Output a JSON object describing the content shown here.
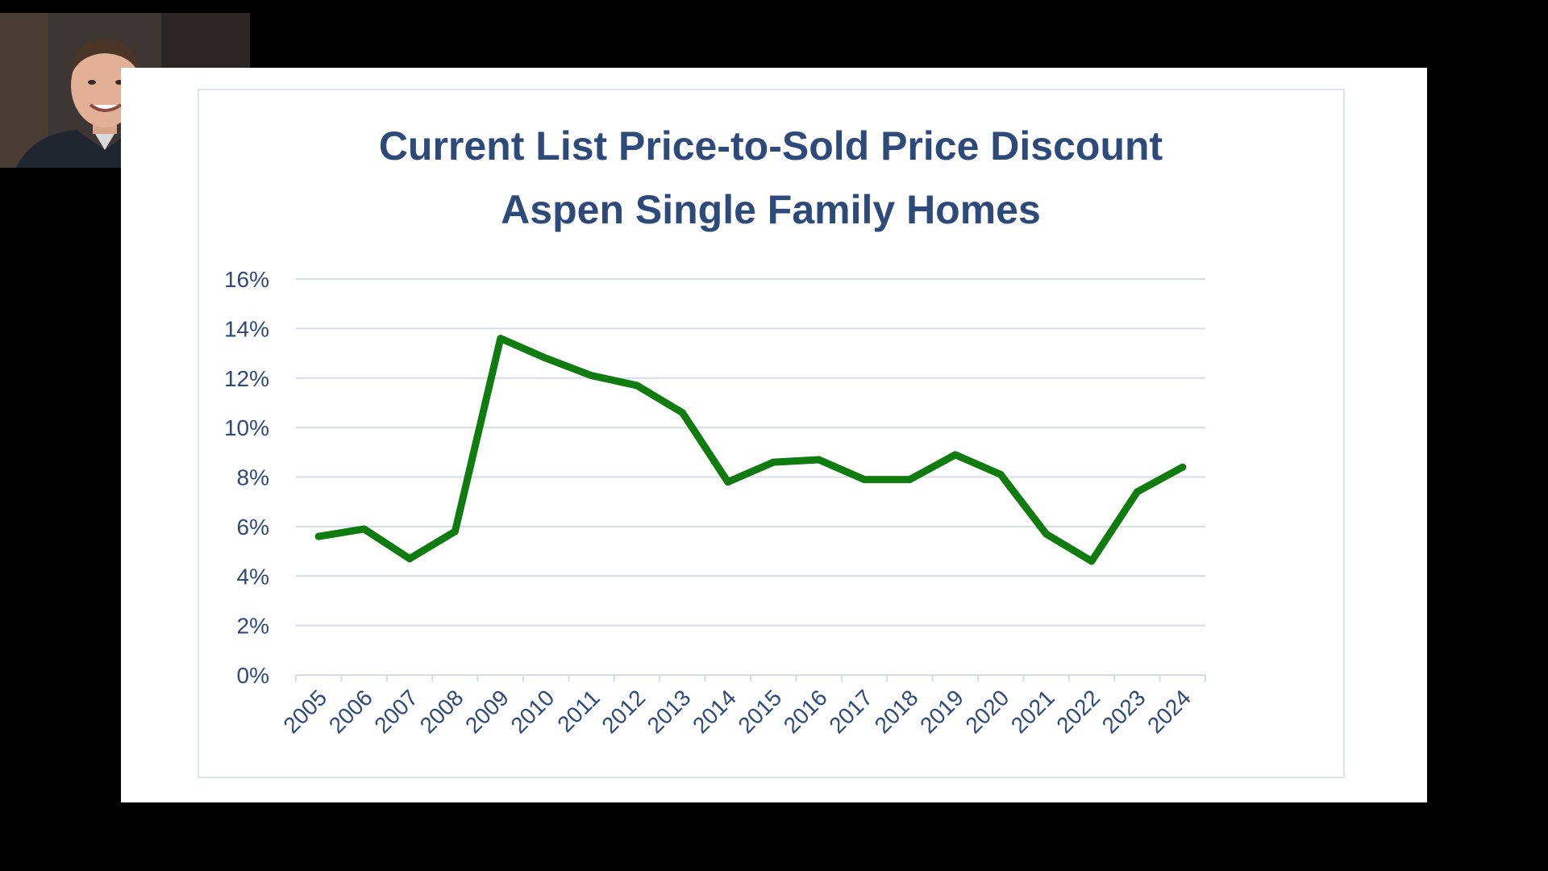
{
  "chart_data": {
    "type": "line",
    "title": "Current List Price-to-Sold Price Discount",
    "subtitle": "Aspen Single Family Homes",
    "categories": [
      "2005",
      "2006",
      "2007",
      "2008",
      "2009",
      "2010",
      "2011",
      "2012",
      "2013",
      "2014",
      "2015",
      "2016",
      "2017",
      "2018",
      "2019",
      "2020",
      "2021",
      "2022",
      "2023",
      "2024"
    ],
    "series": [
      {
        "values": [
          5.6,
          5.9,
          4.7,
          5.8,
          13.6,
          12.8,
          12.1,
          11.7,
          10.6,
          7.8,
          8.6,
          8.7,
          7.9,
          7.9,
          8.9,
          8.1,
          5.7,
          4.6,
          7.4,
          8.4
        ],
        "color": "#107c10"
      }
    ],
    "y_ticks": [
      "0%",
      "2%",
      "4%",
      "6%",
      "8%",
      "10%",
      "12%",
      "14%",
      "16%"
    ],
    "ylim": [
      0,
      16
    ],
    "xlabel": "",
    "ylabel": "",
    "grid": true,
    "legend": "none",
    "colors": {
      "title": "#2e4a7a",
      "tick_labels": "#2e4a7a",
      "gridlines": "#d6dbe6",
      "line": "#107c10",
      "background": "#000000",
      "slide": "#ffffff"
    }
  },
  "webcam": {
    "icon": "presenter-video-icon"
  }
}
